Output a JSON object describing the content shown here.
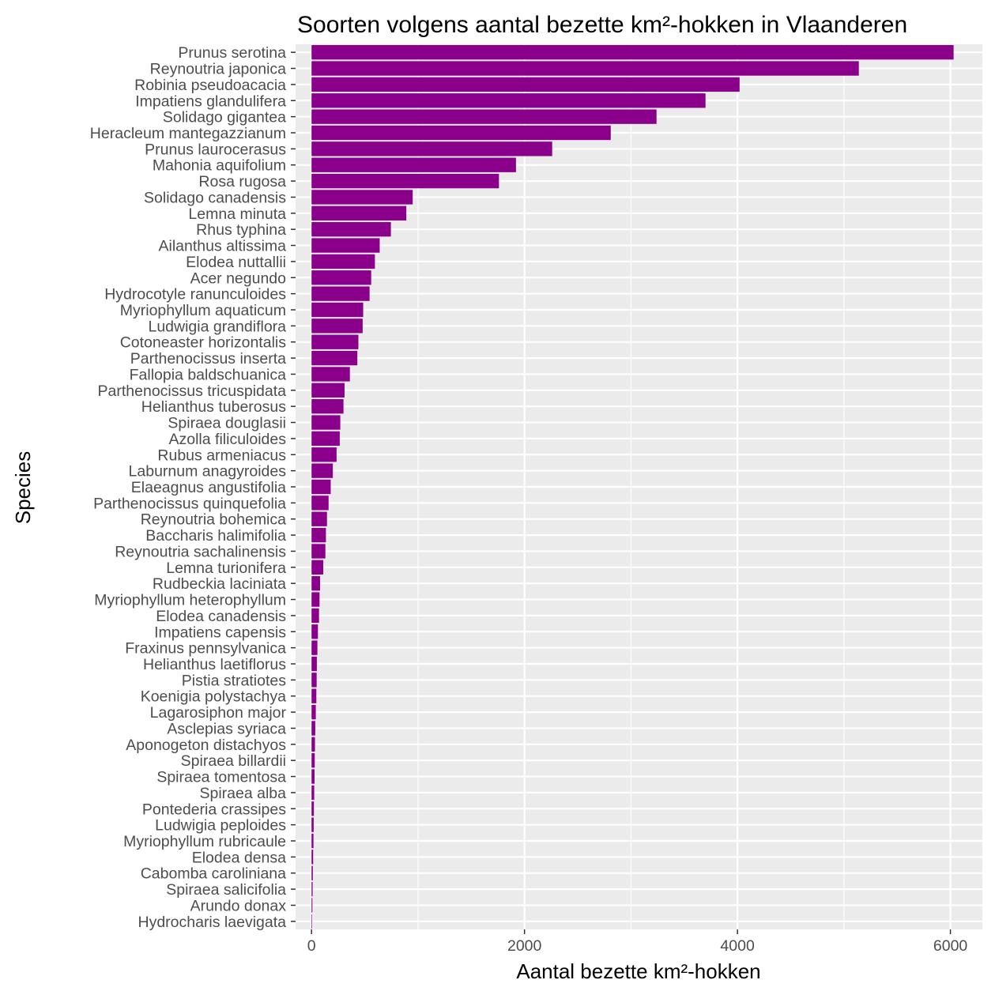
{
  "chart_data": {
    "type": "bar",
    "orientation": "horizontal",
    "title": "Soorten volgens aantal bezette km²-hokken in Vlaanderen",
    "xlabel": "Aantal bezette km²-hokken",
    "ylabel": "Species",
    "xlim": [
      -150,
      6300
    ],
    "x_ticks": [
      "0",
      "2000",
      "4000",
      "6000"
    ],
    "x_tick_values": [
      0,
      2000,
      4000,
      6000
    ],
    "grid": true,
    "bar_color": "#8B008B",
    "panel_color": "#EBEBEB",
    "categories": [
      "Prunus serotina",
      "Reynoutria japonica",
      "Robinia pseudoacacia",
      "Impatiens glandulifera",
      "Solidago gigantea",
      "Heracleum mantegazzianum",
      "Prunus laurocerasus",
      "Mahonia aquifolium",
      "Rosa rugosa",
      "Solidago canadensis",
      "Lemna minuta",
      "Rhus typhina",
      "Ailanthus altissima",
      "Elodea nuttallii",
      "Acer negundo",
      "Hydrocotyle ranunculoides",
      "Myriophyllum aquaticum",
      "Ludwigia grandiflora",
      "Cotoneaster horizontalis",
      "Parthenocissus inserta",
      "Fallopia baldschuanica",
      "Parthenocissus tricuspidata",
      "Helianthus tuberosus",
      "Spiraea douglasii",
      "Azolla filiculoides",
      "Rubus armeniacus",
      "Laburnum anagyroides",
      "Elaeagnus angustifolia",
      "Parthenocissus quinquefolia",
      "Reynoutria bohemica",
      "Baccharis halimifolia",
      "Reynoutria sachalinensis",
      "Lemna turionifera",
      "Rudbeckia laciniata",
      "Myriophyllum heterophyllum",
      "Elodea canadensis",
      "Impatiens capensis",
      "Fraxinus pennsylvanica",
      "Helianthus laetiflorus",
      "Pistia stratiotes",
      "Koenigia polystachya",
      "Lagarosiphon major",
      "Asclepias syriaca",
      "Aponogeton distachyos",
      "Spiraea billardii",
      "Spiraea tomentosa",
      "Spiraea alba",
      "Pontederia crassipes",
      "Ludwigia peploides",
      "Myriophyllum rubricaule",
      "Elodea densa",
      "Cabomba caroliniana",
      "Spiraea salicifolia",
      "Arundo donax",
      "Hydrocharis laevigata"
    ],
    "values": [
      6030,
      5140,
      4020,
      3700,
      3240,
      2810,
      2260,
      1920,
      1760,
      950,
      890,
      745,
      640,
      595,
      560,
      545,
      485,
      480,
      440,
      430,
      360,
      310,
      300,
      270,
      265,
      235,
      200,
      180,
      160,
      145,
      135,
      130,
      110,
      80,
      75,
      70,
      60,
      55,
      50,
      48,
      45,
      40,
      35,
      32,
      30,
      28,
      25,
      22,
      20,
      18,
      15,
      12,
      10,
      8,
      5
    ]
  }
}
